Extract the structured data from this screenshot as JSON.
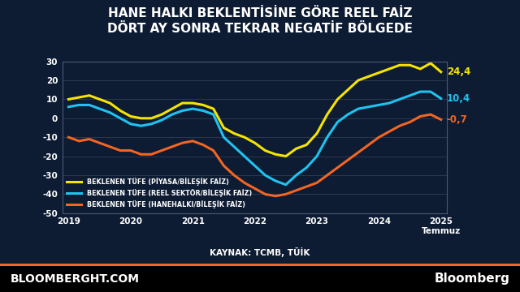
{
  "chart_data": {
    "type": "line",
    "title": "HANE HALKI BEKLENTİSİNE GÖRE REEL FAİZ\nDÖRT AY SONRA TEKRAR NEGATİF BÖLGEDE",
    "source": "KAYNAK: TCMB, TÜİK",
    "footer": [
      "BLOOMBERGHT.COM",
      "Bloomberg"
    ],
    "x": [
      2019.5,
      2019.6667,
      2019.8333,
      2020.0,
      2020.1667,
      2020.3333,
      2020.5,
      2020.6667,
      2020.8333,
      2021.0,
      2021.1667,
      2021.3333,
      2021.5,
      2021.6667,
      2021.8333,
      2022.0,
      2022.1667,
      2022.3333,
      2022.5,
      2022.6667,
      2022.8333,
      2023.0,
      2023.1667,
      2023.3333,
      2023.5,
      2023.6667,
      2023.8333,
      2024.0,
      2024.1667,
      2024.3333,
      2024.5,
      2024.6667,
      2024.8333,
      2025.0,
      2025.1667,
      2025.3333,
      2025.5
    ],
    "series": [
      {
        "name": "BEKLENEN TÜFE (PİYASA/BİLEŞİK FAİZ)",
        "color": "#f5e400",
        "values": [
          10,
          11,
          12,
          10,
          8,
          4,
          1,
          0,
          0,
          2,
          5,
          8,
          8,
          7,
          5,
          -5,
          -8,
          -10,
          -13,
          -17,
          -19,
          -20,
          -16,
          -14,
          -8,
          2,
          10,
          15,
          20,
          22,
          24,
          26,
          28,
          28,
          26,
          29,
          24.4
        ],
        "value_labels": [
          null,
          null,
          null,
          null,
          null,
          null,
          null,
          null,
          null,
          null,
          null,
          null,
          null,
          null,
          null,
          null,
          null,
          null,
          null,
          null,
          null,
          null,
          null,
          null,
          null,
          null,
          null,
          null,
          null,
          null,
          null,
          null,
          null,
          null,
          null,
          null,
          "24,4"
        ]
      },
      {
        "name": "BEKLENEN TÜFE (REEL SEKTÖR/BİLEŞİK FAİZ)",
        "color": "#1ec3f0",
        "values": [
          6,
          7,
          7,
          5,
          3,
          0,
          -3,
          -4,
          -3,
          -1,
          2,
          4,
          5,
          4,
          2,
          -10,
          -15,
          -20,
          -25,
          -30,
          -33,
          -35,
          -30,
          -26,
          -20,
          -10,
          -2,
          2,
          5,
          6,
          7,
          8,
          10,
          12,
          14,
          14,
          10.4
        ],
        "value_labels": [
          null,
          null,
          null,
          null,
          null,
          null,
          null,
          null,
          null,
          null,
          null,
          null,
          null,
          null,
          null,
          null,
          null,
          null,
          null,
          null,
          null,
          null,
          null,
          null,
          null,
          null,
          null,
          null,
          null,
          null,
          null,
          null,
          null,
          null,
          null,
          null,
          "10,4"
        ]
      },
      {
        "name": "BEKLENEN TÜFE (HANEHALKI/BİLEŞİK FAİZ)",
        "color": "#f26522",
        "values": [
          -10,
          -12,
          -11,
          -13,
          -15,
          -17,
          -17,
          -19,
          -19,
          -17,
          -15,
          -13,
          -12,
          -14,
          -17,
          -25,
          -30,
          -34,
          -37,
          -40,
          -41,
          -40,
          -38,
          -36,
          -34,
          -30,
          -26,
          -22,
          -18,
          -14,
          -10,
          -7,
          -4,
          -2,
          1,
          2,
          -0.7
        ],
        "value_labels": [
          null,
          null,
          null,
          null,
          null,
          null,
          null,
          null,
          null,
          null,
          null,
          null,
          null,
          null,
          null,
          null,
          null,
          null,
          null,
          null,
          null,
          null,
          null,
          null,
          null,
          null,
          null,
          null,
          null,
          null,
          null,
          null,
          null,
          null,
          null,
          null,
          "-0,7"
        ]
      }
    ],
    "xlim": [
      2019.4,
      2025.6
    ],
    "xticks": [
      {
        "value": 2019.5,
        "label": "2019"
      },
      {
        "value": 2020.5,
        "label": "2020"
      },
      {
        "value": 2021.5,
        "label": "2021"
      },
      {
        "value": 2022.5,
        "label": "2022"
      },
      {
        "value": 2023.5,
        "label": "2023"
      },
      {
        "value": 2024.5,
        "label": "2024"
      },
      {
        "value": 2025.5,
        "label": "2025\nTemmuz"
      }
    ],
    "ylim": [
      -50,
      30
    ],
    "yticks": [
      -50,
      -40,
      -30,
      -20,
      -10,
      0,
      10,
      20,
      30
    ],
    "grid": true,
    "legend": "lower left"
  }
}
